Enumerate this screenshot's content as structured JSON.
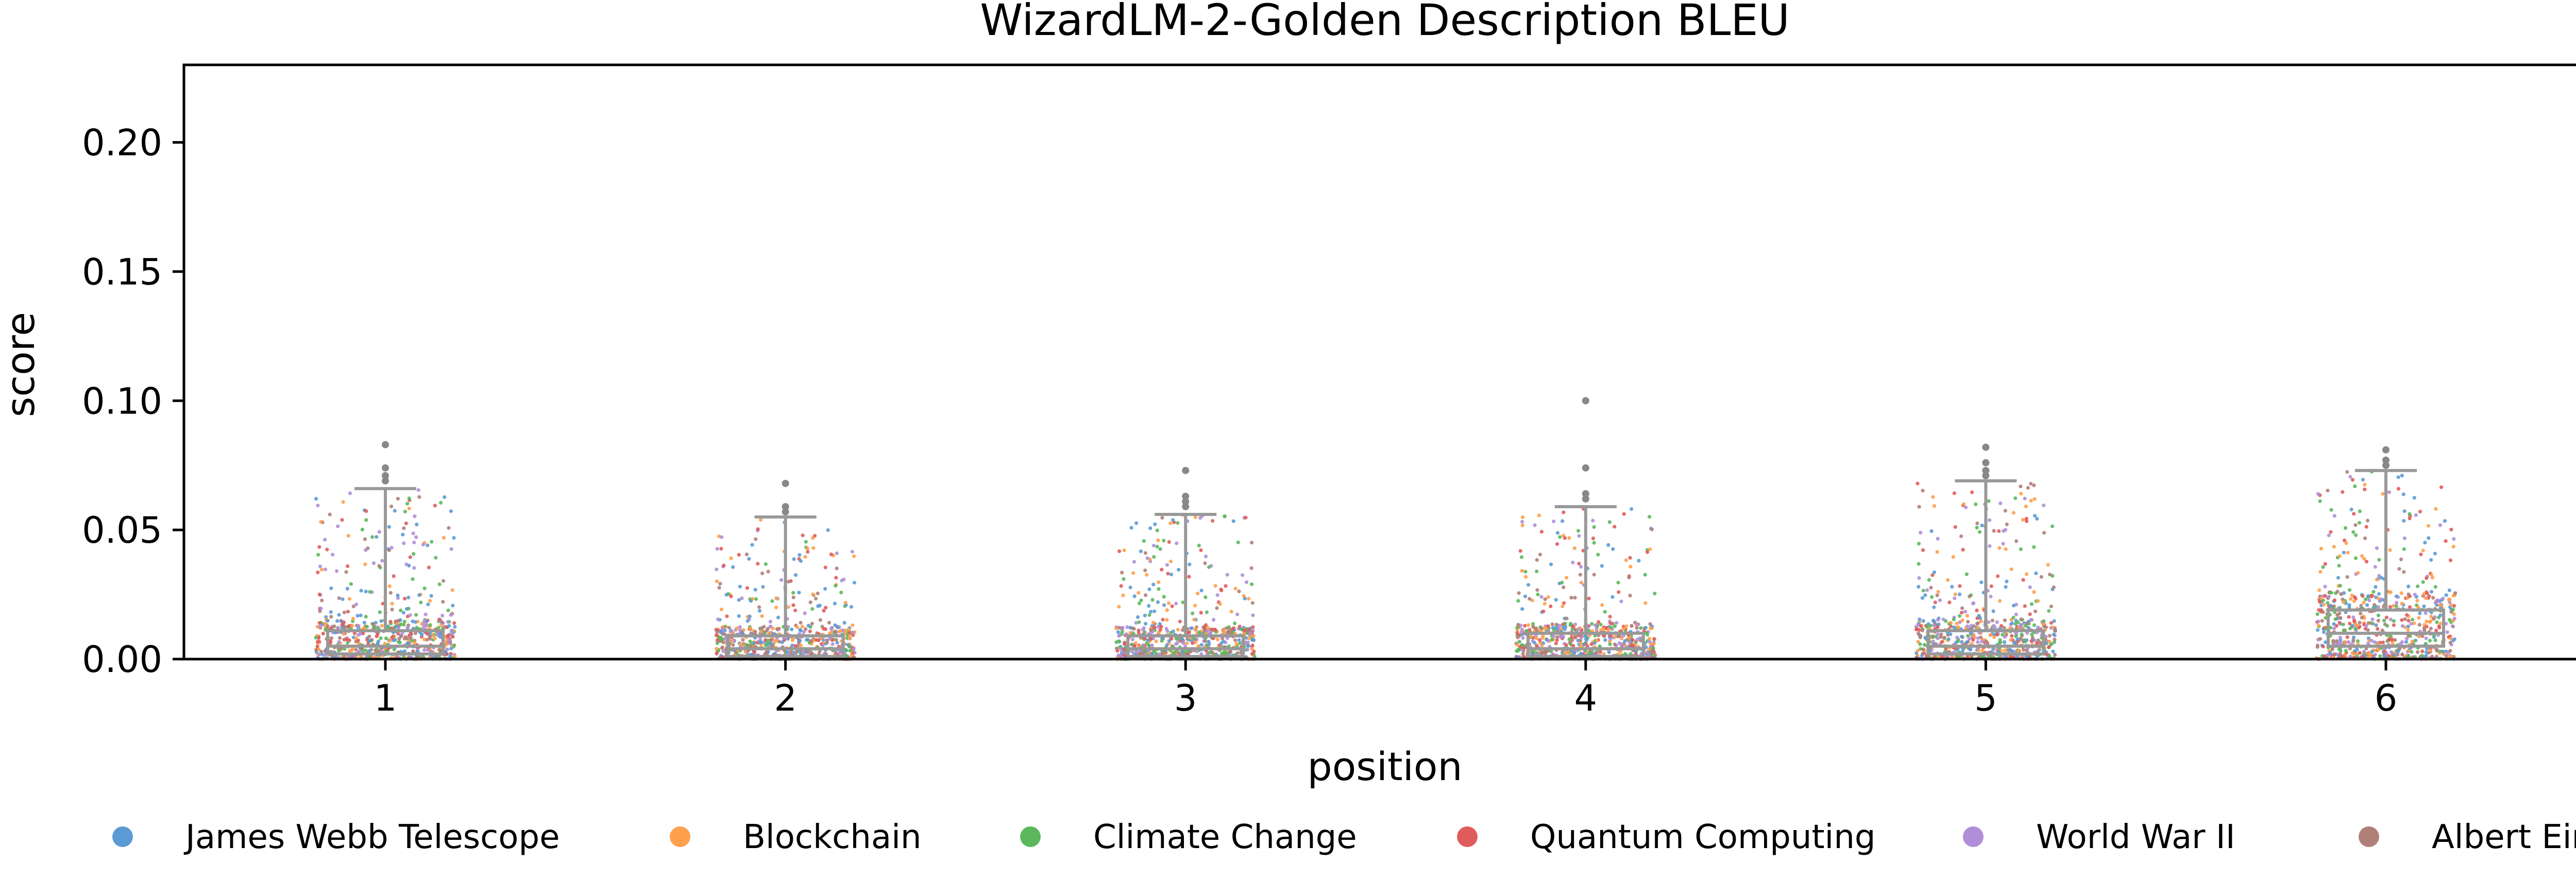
{
  "chart_data": {
    "type": "box-strip",
    "title": "WizardLM-2-Golden Description BLEU",
    "xlabel": "position",
    "ylabel": "score",
    "ylim": [
      0,
      0.23
    ],
    "yticks": [
      "0.00",
      "0.05",
      "0.10",
      "0.15",
      "0.20"
    ],
    "categories": [
      "1",
      "2",
      "3",
      "4",
      "5",
      "6"
    ],
    "legend": {
      "placement": "bottom",
      "entries": [
        "James Webb Telescope",
        "Blockchain",
        "Climate Change",
        "Quantum Computing",
        "World War II",
        "Albert Einstein"
      ]
    },
    "series_colors": [
      "#5b9bd5",
      "#ffa04d",
      "#5cb85c",
      "#e05c5c",
      "#b08fd8",
      "#b08078"
    ],
    "boxes": [
      {
        "category": "1",
        "q1": 0.002,
        "median": 0.005,
        "q3": 0.011,
        "whisker_low": 0.0,
        "whisker_high": 0.066,
        "outliers": [
          0.069,
          0.071,
          0.074,
          0.083
        ]
      },
      {
        "category": "2",
        "q1": 0.001,
        "median": 0.004,
        "q3": 0.009,
        "whisker_low": 0.0,
        "whisker_high": 0.055,
        "outliers": [
          0.057,
          0.059,
          0.068
        ]
      },
      {
        "category": "3",
        "q1": 0.001,
        "median": 0.004,
        "q3": 0.009,
        "whisker_low": 0.0,
        "whisker_high": 0.056,
        "outliers": [
          0.059,
          0.061,
          0.063,
          0.073
        ]
      },
      {
        "category": "4",
        "q1": 0.001,
        "median": 0.004,
        "q3": 0.01,
        "whisker_low": 0.0,
        "whisker_high": 0.059,
        "outliers": [
          0.062,
          0.064,
          0.074,
          0.1
        ]
      },
      {
        "category": "5",
        "q1": 0.002,
        "median": 0.005,
        "q3": 0.011,
        "whisker_low": 0.0,
        "whisker_high": 0.069,
        "outliers": [
          0.071,
          0.073,
          0.076,
          0.082
        ]
      },
      {
        "category": "6",
        "q1": 0.005,
        "median": 0.01,
        "q3": 0.019,
        "whisker_low": 0.0,
        "whisker_high": 0.073,
        "outliers": [
          0.075,
          0.077,
          0.081
        ]
      }
    ]
  }
}
